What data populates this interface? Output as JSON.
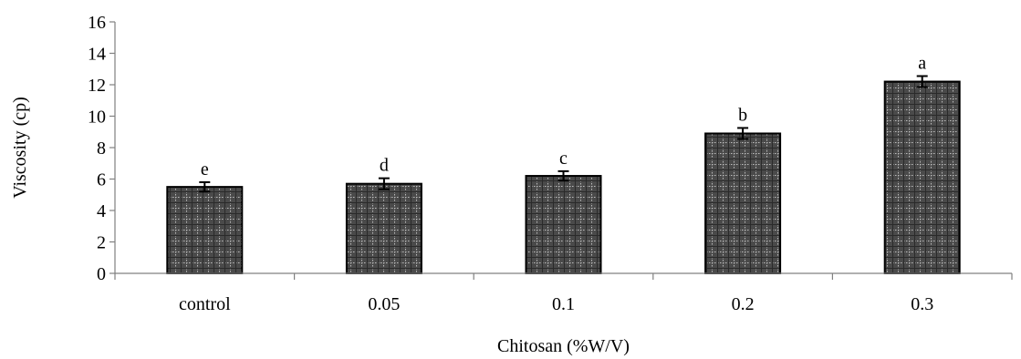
{
  "chart_data": {
    "type": "bar",
    "categories": [
      "control",
      "0.05",
      "0.1",
      "0.2",
      "0.3"
    ],
    "values": [
      5.5,
      5.7,
      6.2,
      8.9,
      12.2
    ],
    "errors": [
      0.3,
      0.35,
      0.3,
      0.35,
      0.35
    ],
    "significance_letters": [
      "e",
      "d",
      "c",
      "b",
      "a"
    ],
    "title": "",
    "xlabel": "Chitosan (%W/V)",
    "ylabel": "Viscosity (cp)",
    "ylim": [
      0,
      16
    ],
    "yticks": [
      0,
      2,
      4,
      6,
      8,
      10,
      12,
      14,
      16
    ],
    "grid": false,
    "legend": "none",
    "bar_color": "#555555",
    "bar_pattern": "checkered-dotted"
  }
}
